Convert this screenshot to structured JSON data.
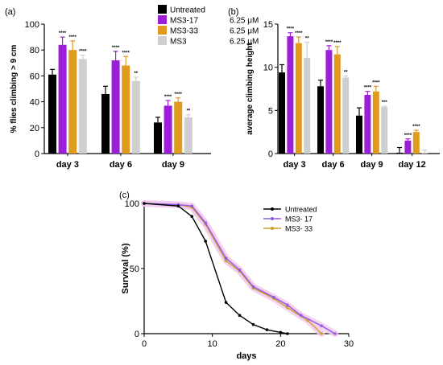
{
  "panels": {
    "a": "(a)",
    "b": "(b)",
    "c": "(c)"
  },
  "colors": {
    "untreated": "#000000",
    "ms3_17": "#9b1fd6",
    "ms3_33": "#e09a1e",
    "ms3": "#cfcfcf",
    "ms3_17_line": "#8e5ae6",
    "ms3_33_line": "#c9a227",
    "halo": "#f2c8ef"
  },
  "chart_data": [
    {
      "type": "bar",
      "ylabel": "%  flies climbing > 9 cm",
      "ylim": [
        0,
        100
      ],
      "yticks": [
        0,
        20,
        40,
        60,
        80,
        100
      ],
      "categories": [
        "day 3",
        "day 6",
        "day 9"
      ],
      "legend": {
        "placement": "top",
        "entries": [
          {
            "name": "Untreated",
            "dose": ""
          },
          {
            "name": "MS3-17",
            "dose": "6.25 μM"
          },
          {
            "name": "MS3-33",
            "dose": "6.25 μM"
          },
          {
            "name": "MS3",
            "dose": "6.25 μM"
          }
        ]
      },
      "series": [
        {
          "name": "Untreated",
          "values": [
            61,
            46,
            24
          ],
          "errors": [
            4,
            6,
            4
          ],
          "sig": [
            "",
            "",
            ""
          ]
        },
        {
          "name": "MS3-17",
          "values": [
            84,
            72,
            37
          ],
          "errors": [
            6,
            7,
            4
          ],
          "sig": [
            "****",
            "****",
            "****"
          ]
        },
        {
          "name": "MS3-33",
          "values": [
            80,
            68,
            40
          ],
          "errors": [
            7,
            7,
            3
          ],
          "sig": [
            "****",
            "****",
            "****"
          ]
        },
        {
          "name": "MS3",
          "values": [
            73,
            56,
            28
          ],
          "errors": [
            3,
            3,
            2
          ],
          "sig": [
            "****",
            "**",
            "**"
          ]
        }
      ]
    },
    {
      "type": "bar",
      "ylabel": "average climbing height",
      "ylim": [
        0,
        15
      ],
      "yticks": [
        0,
        5,
        10,
        15
      ],
      "categories": [
        "day 3",
        "day 6",
        "day 9",
        "day 12"
      ],
      "series": [
        {
          "name": "Untreated",
          "values": [
            9.4,
            7.8,
            4.4,
            0.1
          ],
          "errors": [
            0.9,
            0.7,
            0.9,
            0.6
          ],
          "sig": [
            "",
            "",
            "",
            ""
          ]
        },
        {
          "name": "MS3-17",
          "values": [
            13.6,
            12.0,
            6.8,
            1.5
          ],
          "errors": [
            0.4,
            0.5,
            0.4,
            0.2
          ],
          "sig": [
            "****",
            "****",
            "****",
            "****"
          ]
        },
        {
          "name": "MS3-33",
          "values": [
            12.8,
            11.5,
            7.2,
            2.5
          ],
          "errors": [
            0.7,
            0.9,
            0.6,
            0.2
          ],
          "sig": [
            "****",
            "****",
            "****",
            "****"
          ]
        },
        {
          "name": "MS3",
          "values": [
            11.1,
            8.8,
            5.4,
            0.1
          ],
          "errors": [
            1.8,
            0.2,
            0.1,
            0.3
          ],
          "sig": [
            "**",
            "**",
            "***",
            ""
          ]
        }
      ]
    },
    {
      "type": "line",
      "xlabel": "days",
      "ylabel": "Survival (%)",
      "xlim": [
        0,
        30
      ],
      "ylim": [
        0,
        100
      ],
      "xticks": [
        0,
        10,
        20,
        30
      ],
      "yticks": [
        0,
        50,
        100
      ],
      "legend": {
        "placement": "top-right"
      },
      "series": [
        {
          "name": "Untreated",
          "x": [
            0,
            5,
            7,
            9,
            12,
            14,
            16,
            18,
            20,
            21
          ],
          "y": [
            100,
            98,
            90,
            71,
            24,
            14,
            7,
            3,
            1,
            0
          ]
        },
        {
          "name": "MS3- 17",
          "x": [
            0,
            5,
            7,
            9,
            12,
            14,
            16,
            19,
            21,
            23,
            26,
            28
          ],
          "y": [
            100,
            99,
            98,
            85,
            58,
            49,
            36,
            28,
            22,
            14,
            6,
            0
          ]
        },
        {
          "name": "MS3- 33",
          "x": [
            0,
            5,
            7,
            9,
            12,
            14,
            16,
            19,
            21,
            24,
            26
          ],
          "y": [
            100,
            99,
            97,
            84,
            56,
            48,
            35,
            27,
            20,
            10,
            0
          ]
        }
      ]
    }
  ]
}
